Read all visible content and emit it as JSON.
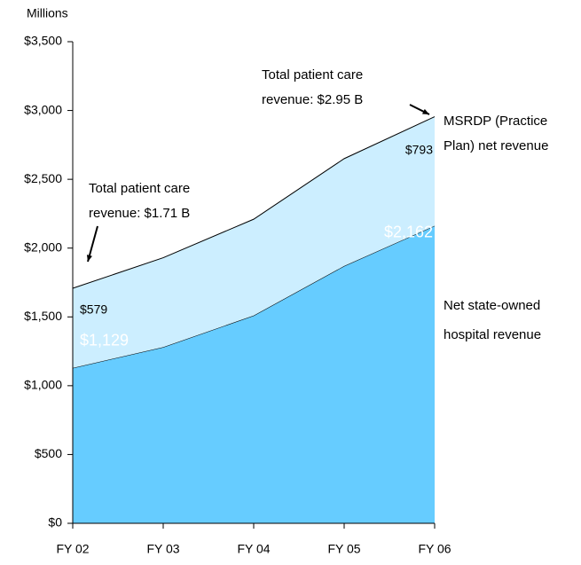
{
  "chart_data": {
    "type": "stacked_area",
    "ylabel": "Millions",
    "categories": [
      "FY 02",
      "FY 03",
      "FY 04",
      "FY 05",
      "FY 06"
    ],
    "series": [
      {
        "name": [
          "Net state-owned",
          "hospital revenue"
        ],
        "color": "#66ccff",
        "values": [
          1129,
          1280,
          1510,
          1870,
          2162
        ],
        "value_labels": [
          "$1,129",
          null,
          null,
          null,
          "$2,162"
        ]
      },
      {
        "name": [
          "MSRDP (Practice",
          "Plan) net revenue"
        ],
        "color": "#cceeff",
        "values": [
          579,
          650,
          700,
          780,
          793
        ],
        "value_labels": [
          "$579",
          null,
          null,
          null,
          "$793"
        ]
      }
    ],
    "ylim": [
      0,
      3500
    ],
    "yticks": [
      {
        "value": 0,
        "label": "$0"
      },
      {
        "value": 500,
        "label": "$500"
      },
      {
        "value": 1000,
        "label": "$1,000"
      },
      {
        "value": 1500,
        "label": "$1,500"
      },
      {
        "value": 2000,
        "label": "$2,000"
      },
      {
        "value": 2500,
        "label": "$2,500"
      },
      {
        "value": 3000,
        "label": "$3,000"
      },
      {
        "value": 3500,
        "label": "$3,500"
      }
    ],
    "annotations": [
      {
        "text": [
          "Total patient care",
          "revenue: $1.71 B"
        ]
      },
      {
        "text": [
          "Total patient care",
          "revenue: $2.95 B"
        ]
      }
    ]
  }
}
